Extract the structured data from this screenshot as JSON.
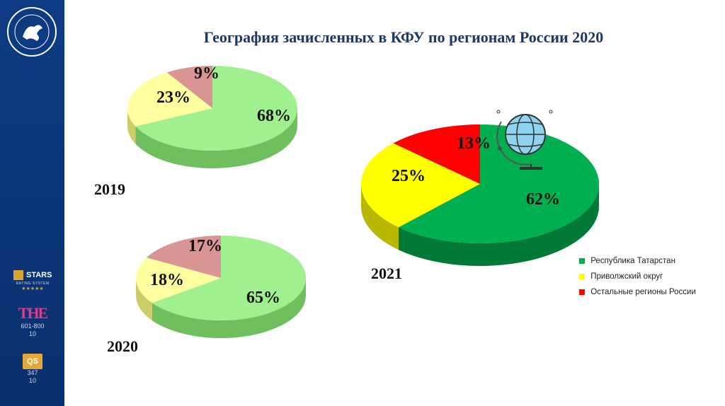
{
  "title": "География зачисленных в КФУ по регионам России 2020",
  "sidebar": {
    "stars": {
      "label": "STARS",
      "sub": "RATING SYSTEM",
      "rating": "★★★★★"
    },
    "the": {
      "label": "THE",
      "rank": "601-800",
      "sub": "10"
    },
    "qs": {
      "label": "QS",
      "rank": "347",
      "sub": "10"
    }
  },
  "colors": {
    "sidebar": "#0d3b84",
    "tatarstan_2021": "#00b050",
    "privolzhsky_2021": "#ffff00",
    "others_2021": "#ff0000",
    "tatarstan_old": "#a0f090",
    "privolzhsky_old": "#ffff9f",
    "others_old": "#d99594"
  },
  "chart_data": [
    {
      "type": "pie",
      "label": "2019",
      "categories": [
        "Республика Татарстан",
        "Приволжский округ",
        "Остальные регионы России"
      ],
      "values": [
        68,
        23,
        9
      ],
      "labels": [
        "68%",
        "23%",
        "9%"
      ]
    },
    {
      "type": "pie",
      "label": "2020",
      "categories": [
        "Республика Татарстан",
        "Приволжский округ",
        "Остальные регионы России"
      ],
      "values": [
        65,
        18,
        17
      ],
      "labels": [
        "65%",
        "18%",
        "17%"
      ]
    },
    {
      "type": "pie",
      "label": "2021",
      "categories": [
        "Республика Татарстан",
        "Приволжский округ",
        "Остальные регионы России"
      ],
      "values": [
        62,
        25,
        13
      ],
      "labels": [
        "62%",
        "25%",
        "13%"
      ],
      "legend": [
        "Республика Татарстан",
        "Приволжский округ",
        "Остальные регионы России"
      ],
      "legend_position": "bottom-right"
    }
  ]
}
